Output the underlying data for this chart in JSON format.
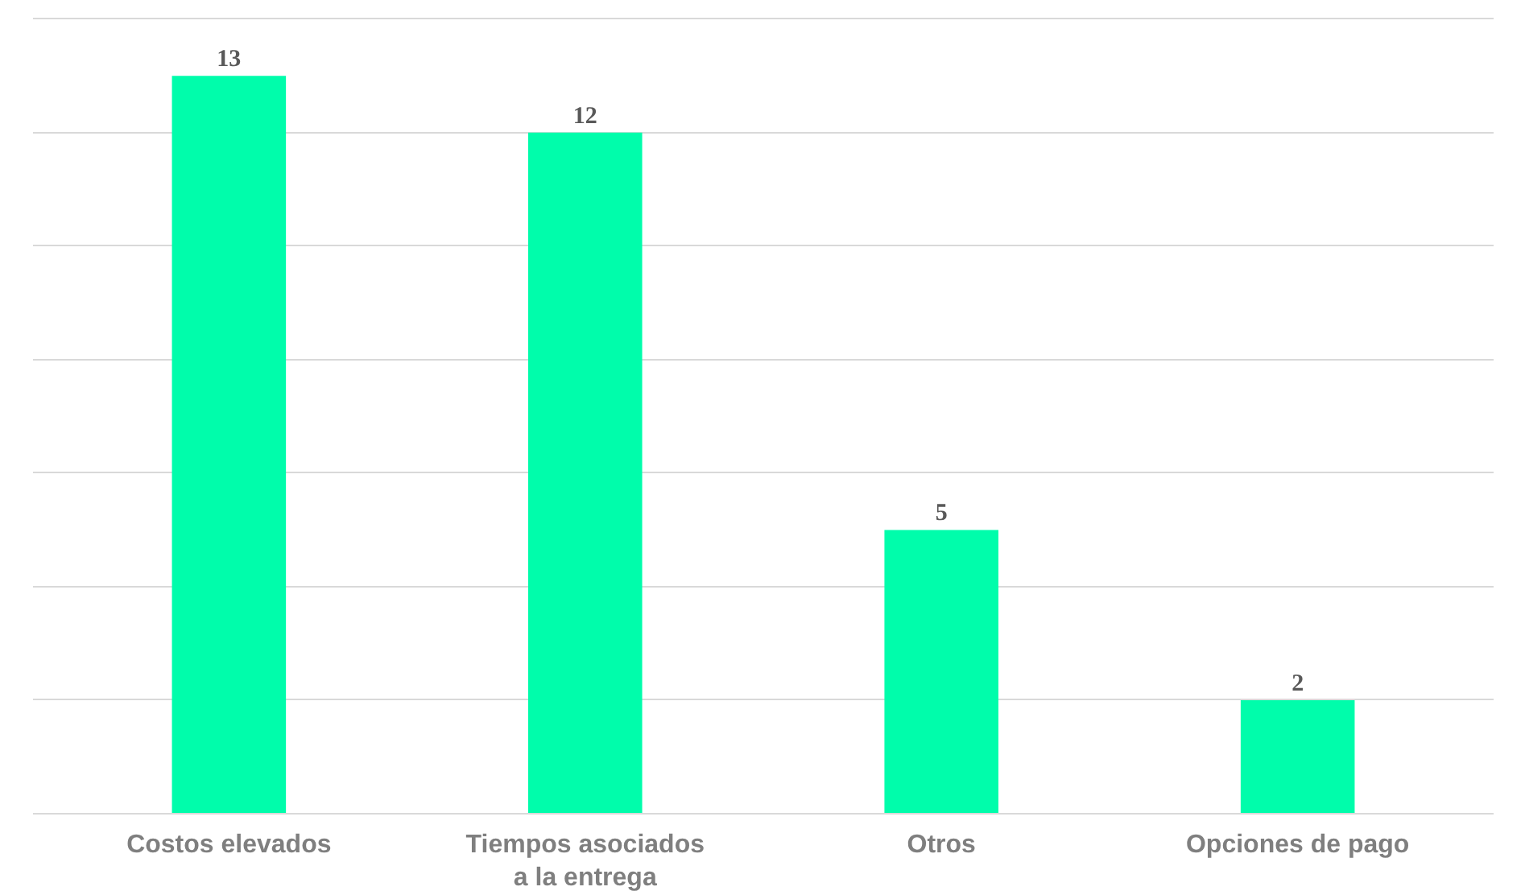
{
  "chart_data": {
    "type": "bar",
    "categories": [
      "Costos elevados",
      "Tiempos asociados\na la entrega",
      "Otros",
      "Opciones de pago"
    ],
    "values": [
      13,
      12,
      5,
      2
    ],
    "color": "#00fdab",
    "grid": "y",
    "tick_labels": "x",
    "data_labels": true
  }
}
